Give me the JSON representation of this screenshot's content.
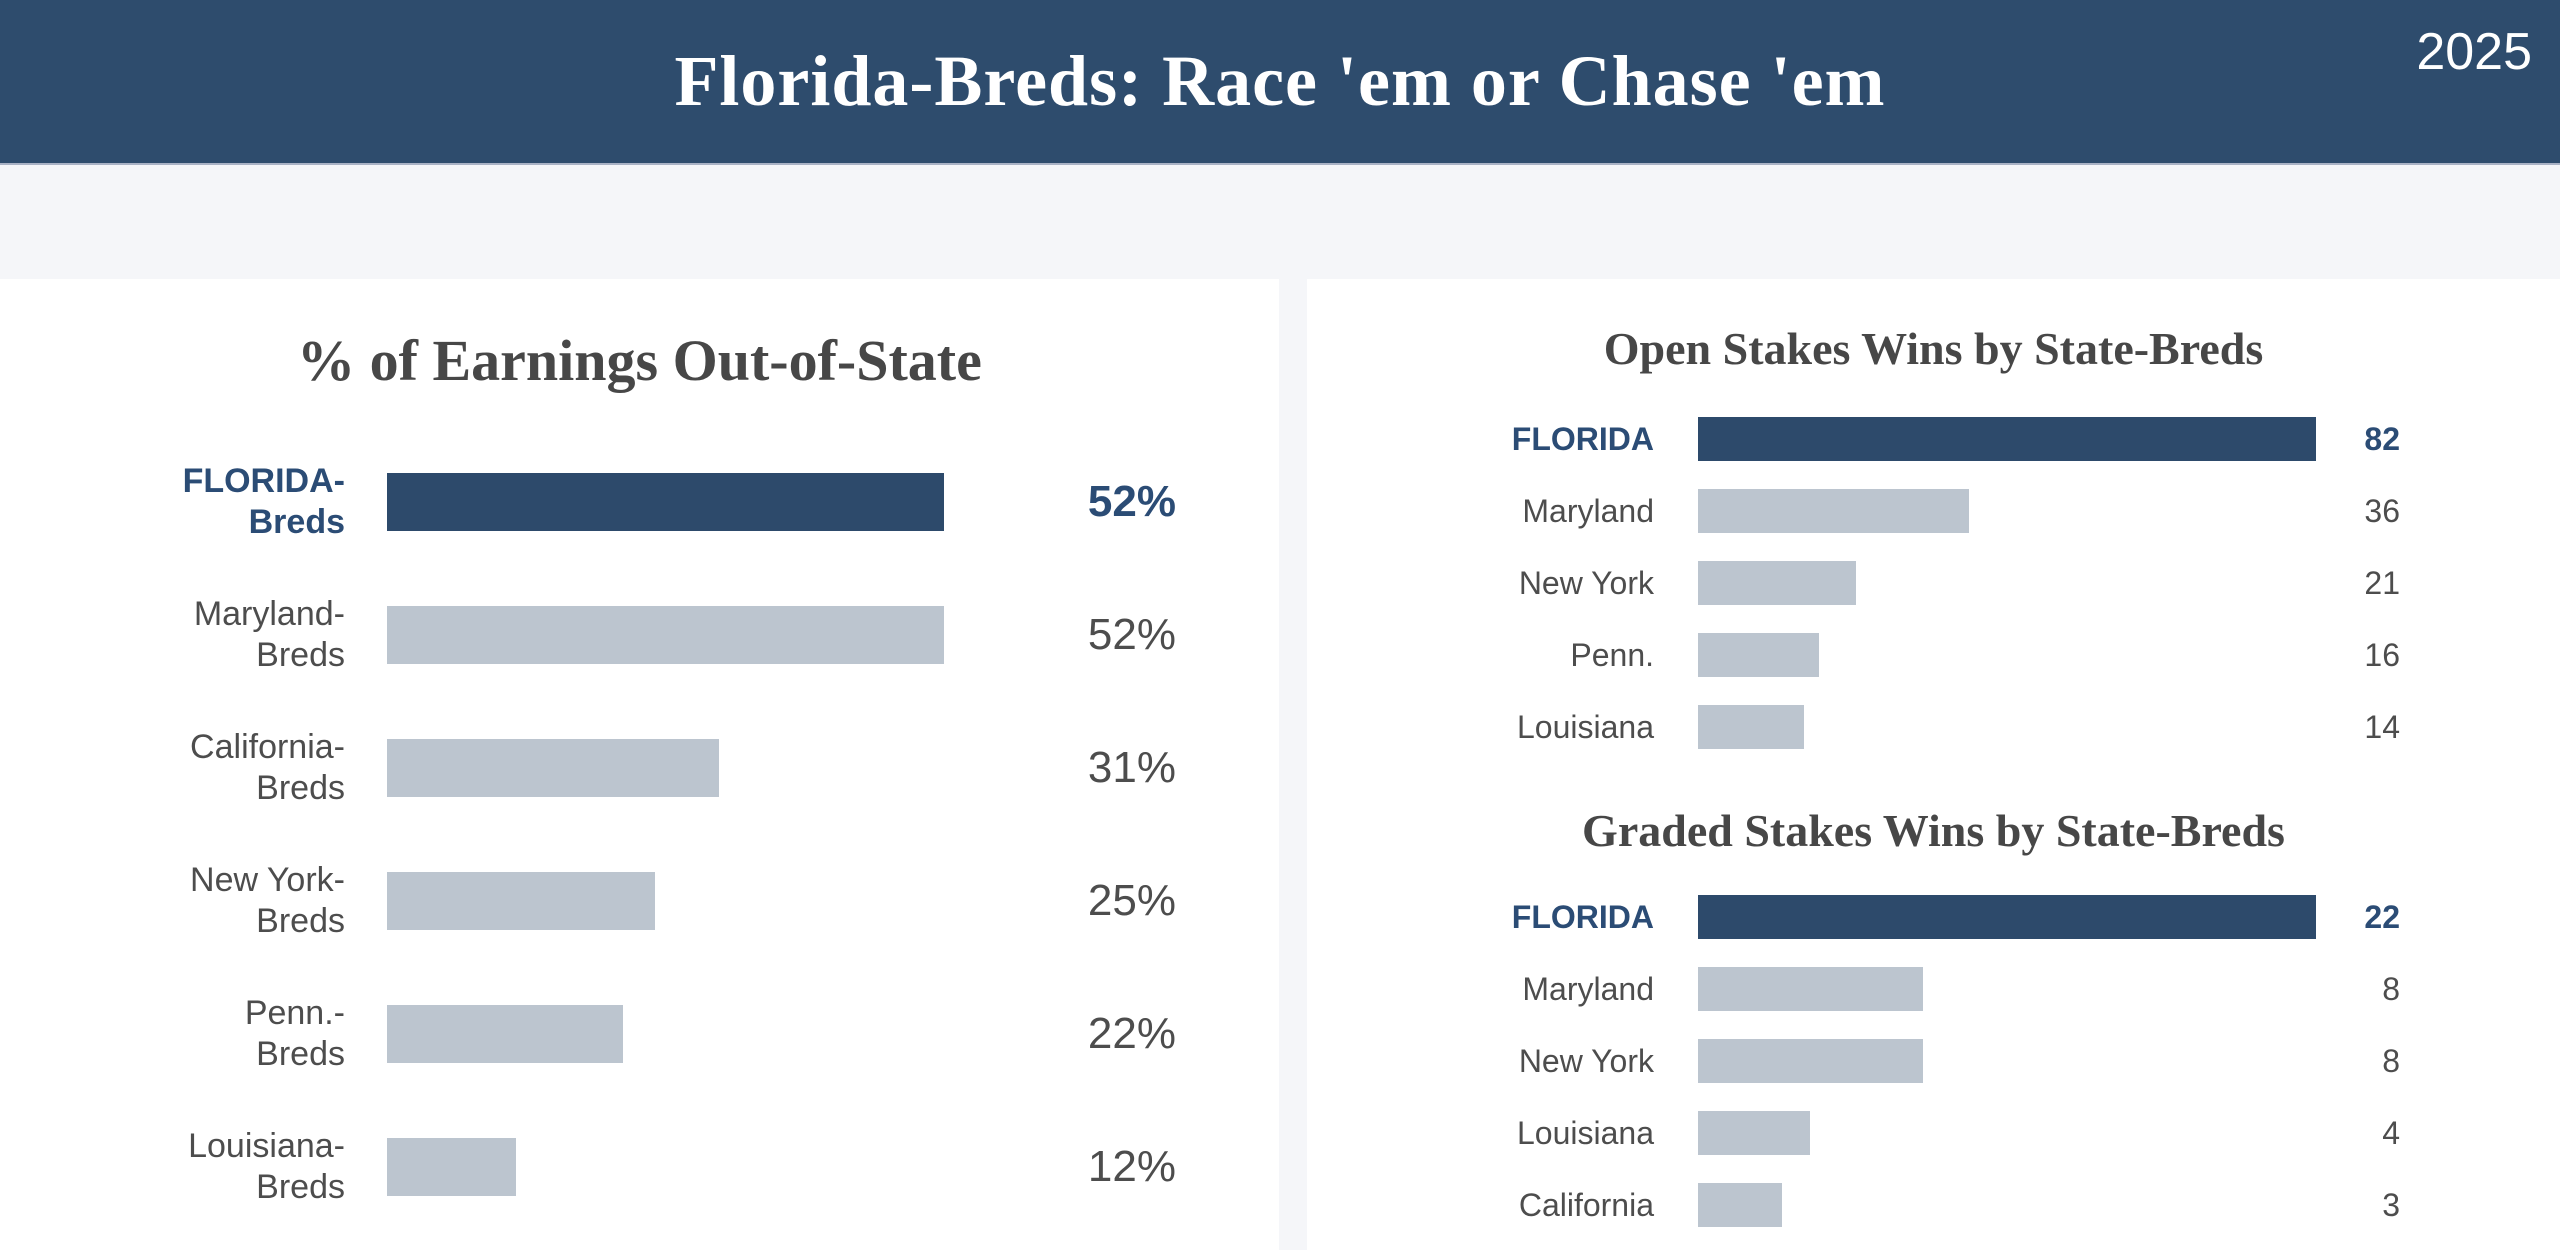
{
  "header": {
    "title": "Florida-Breds: Race 'em or Chase 'em",
    "year": "2025"
  },
  "colors": {
    "header_bg": "#2e4c6d",
    "navy_bar": "#2d4a6b",
    "navy_text": "#2b4c75",
    "gray_bar": "#bcc5cf",
    "label_gray": "#4d4d4d",
    "title_gray": "#474747",
    "page_bg": "#f5f6f9",
    "panel_bg": "#ffffff"
  },
  "chart_data": [
    {
      "id": "earnings_out_of_state",
      "type": "bar",
      "orientation": "horizontal",
      "title": "% of Earnings Out-of-State",
      "categories": [
        "FLORIDA-Breds",
        "Maryland-Breds",
        "California-Breds",
        "New York-Breds",
        "Penn.-Breds",
        "Louisiana-Breds"
      ],
      "label_lines": [
        [
          "FLORIDA-",
          "Breds"
        ],
        [
          "Maryland-",
          "Breds"
        ],
        [
          "California-",
          "Breds"
        ],
        [
          "New York-",
          "Breds"
        ],
        [
          "Penn.-",
          "Breds"
        ],
        [
          "Louisiana-",
          "Breds"
        ]
      ],
      "values": [
        52,
        52,
        31,
        25,
        22,
        12
      ],
      "value_labels": [
        "52%",
        "52%",
        "31%",
        "25%",
        "22%",
        "12%"
      ],
      "max_value": 52,
      "highlight_index": 0,
      "legend": "none",
      "grid": false,
      "value_label_position": "right"
    },
    {
      "id": "open_stakes_wins",
      "type": "bar",
      "orientation": "horizontal",
      "title": "Open Stakes Wins by State-Breds",
      "categories": [
        "FLORIDA",
        "Maryland",
        "New York",
        "Penn.",
        "Louisiana"
      ],
      "values": [
        82,
        36,
        21,
        16,
        14
      ],
      "value_labels": [
        "82",
        "36",
        "21",
        "16",
        "14"
      ],
      "max_value": 82,
      "highlight_index": 0,
      "legend": "none",
      "grid": false,
      "value_label_position": "right"
    },
    {
      "id": "graded_stakes_wins",
      "type": "bar",
      "orientation": "horizontal",
      "title": "Graded Stakes Wins by State-Breds",
      "categories": [
        "FLORIDA",
        "Maryland",
        "New York",
        "Louisiana",
        "California"
      ],
      "values": [
        22,
        8,
        8,
        4,
        3
      ],
      "value_labels": [
        "22",
        "8",
        "8",
        "4",
        "3"
      ],
      "max_value": 22,
      "highlight_index": 0,
      "legend": "none",
      "grid": false,
      "value_label_position": "right"
    }
  ]
}
